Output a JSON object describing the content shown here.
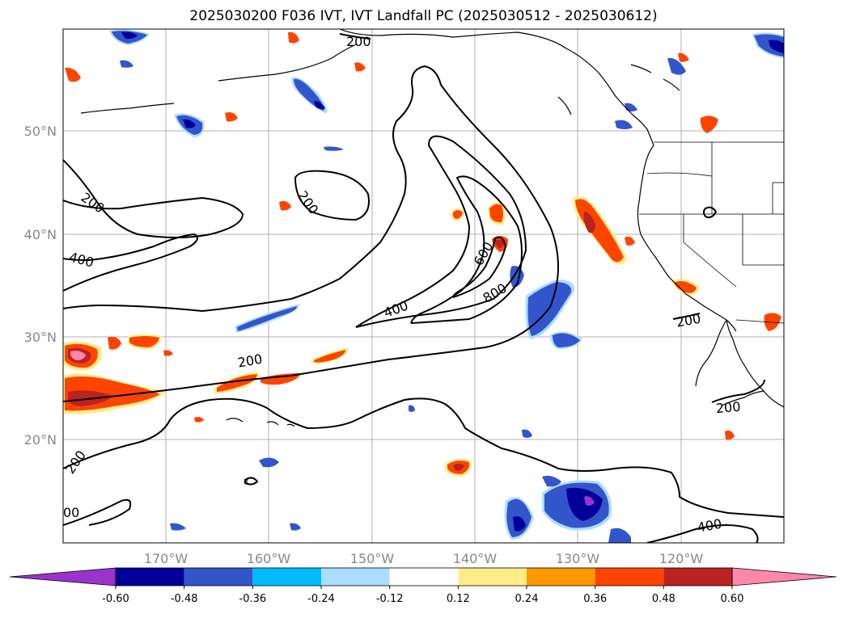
{
  "title": "2025030200 F036 IVT, IVT Landfall PC (2025030512 - 2025030612)",
  "lat_labels": [
    "50°N",
    "40°N",
    "30°N",
    "20°N"
  ],
  "lon_labels": [
    "170°W",
    "160°W",
    "150°W",
    "140°W",
    "130°W",
    "120°W"
  ],
  "contour_labels": [
    {
      "text": "200",
      "region": "top center"
    },
    {
      "text": "200",
      "region": "north pacific west"
    },
    {
      "text": "400",
      "region": "north pacific west"
    },
    {
      "text": "200",
      "region": "central north pacific"
    },
    {
      "text": "600",
      "region": "core"
    },
    {
      "text": "800",
      "region": "core"
    },
    {
      "text": "400",
      "region": "center"
    },
    {
      "text": "200",
      "region": "subtropical band"
    },
    {
      "text": "200",
      "region": "southern california coast"
    },
    {
      "text": "200",
      "region": "baja"
    },
    {
      "text": "200",
      "region": "west edge"
    },
    {
      "text": "00",
      "region": "southwest edge"
    },
    {
      "text": "400",
      "region": "bottom right"
    }
  ],
  "colorbar": {
    "ticks": [
      "-0.60",
      "-0.48",
      "-0.36",
      "-0.24",
      "-0.12",
      "0.12",
      "0.24",
      "0.36",
      "0.48",
      "0.60"
    ],
    "colors": [
      "#9933cc",
      "#000099",
      "#3355cc",
      "#00bbff",
      "#aaddff",
      "#ffffff",
      "#ffee88",
      "#ff9900",
      "#ff4400",
      "#bb2222",
      "#ff88aa"
    ]
  }
}
